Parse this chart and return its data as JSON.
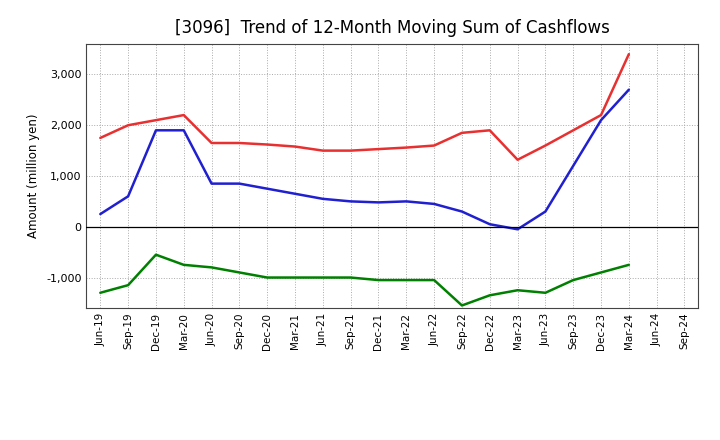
{
  "title": "[3096]  Trend of 12-Month Moving Sum of Cashflows",
  "ylabel": "Amount (million yen)",
  "x_labels": [
    "Jun-19",
    "Sep-19",
    "Dec-19",
    "Mar-20",
    "Jun-20",
    "Sep-20",
    "Dec-20",
    "Mar-21",
    "Jun-21",
    "Sep-21",
    "Dec-21",
    "Mar-22",
    "Jun-22",
    "Sep-22",
    "Dec-22",
    "Mar-23",
    "Jun-23",
    "Sep-23",
    "Dec-23",
    "Mar-24",
    "Jun-24",
    "Sep-24"
  ],
  "operating": [
    1750,
    2000,
    2100,
    2200,
    1650,
    1650,
    1620,
    1580,
    1500,
    1500,
    1530,
    1560,
    1600,
    1850,
    1900,
    1320,
    1600,
    1900,
    2200,
    3400,
    null,
    null
  ],
  "investing": [
    -1300,
    -1150,
    -550,
    -750,
    -800,
    -900,
    -1000,
    -1000,
    -1000,
    -1000,
    -1050,
    -1050,
    -1050,
    -1550,
    -1350,
    -1250,
    -1300,
    -1050,
    -900,
    -750,
    null,
    null
  ],
  "free": [
    250,
    600,
    1900,
    1900,
    850,
    850,
    750,
    650,
    550,
    500,
    480,
    500,
    450,
    300,
    50,
    -50,
    300,
    1200,
    2100,
    2700,
    null,
    null
  ],
  "operating_color": "#e83030",
  "investing_color": "#008000",
  "free_color": "#2020d0",
  "background_color": "#ffffff",
  "plot_bg_color": "#ffffff",
  "grid_color": "#aaaaaa",
  "ylim": [
    -1600,
    3600
  ],
  "yticks": [
    -1000,
    0,
    1000,
    2000,
    3000
  ],
  "title_fontsize": 12
}
